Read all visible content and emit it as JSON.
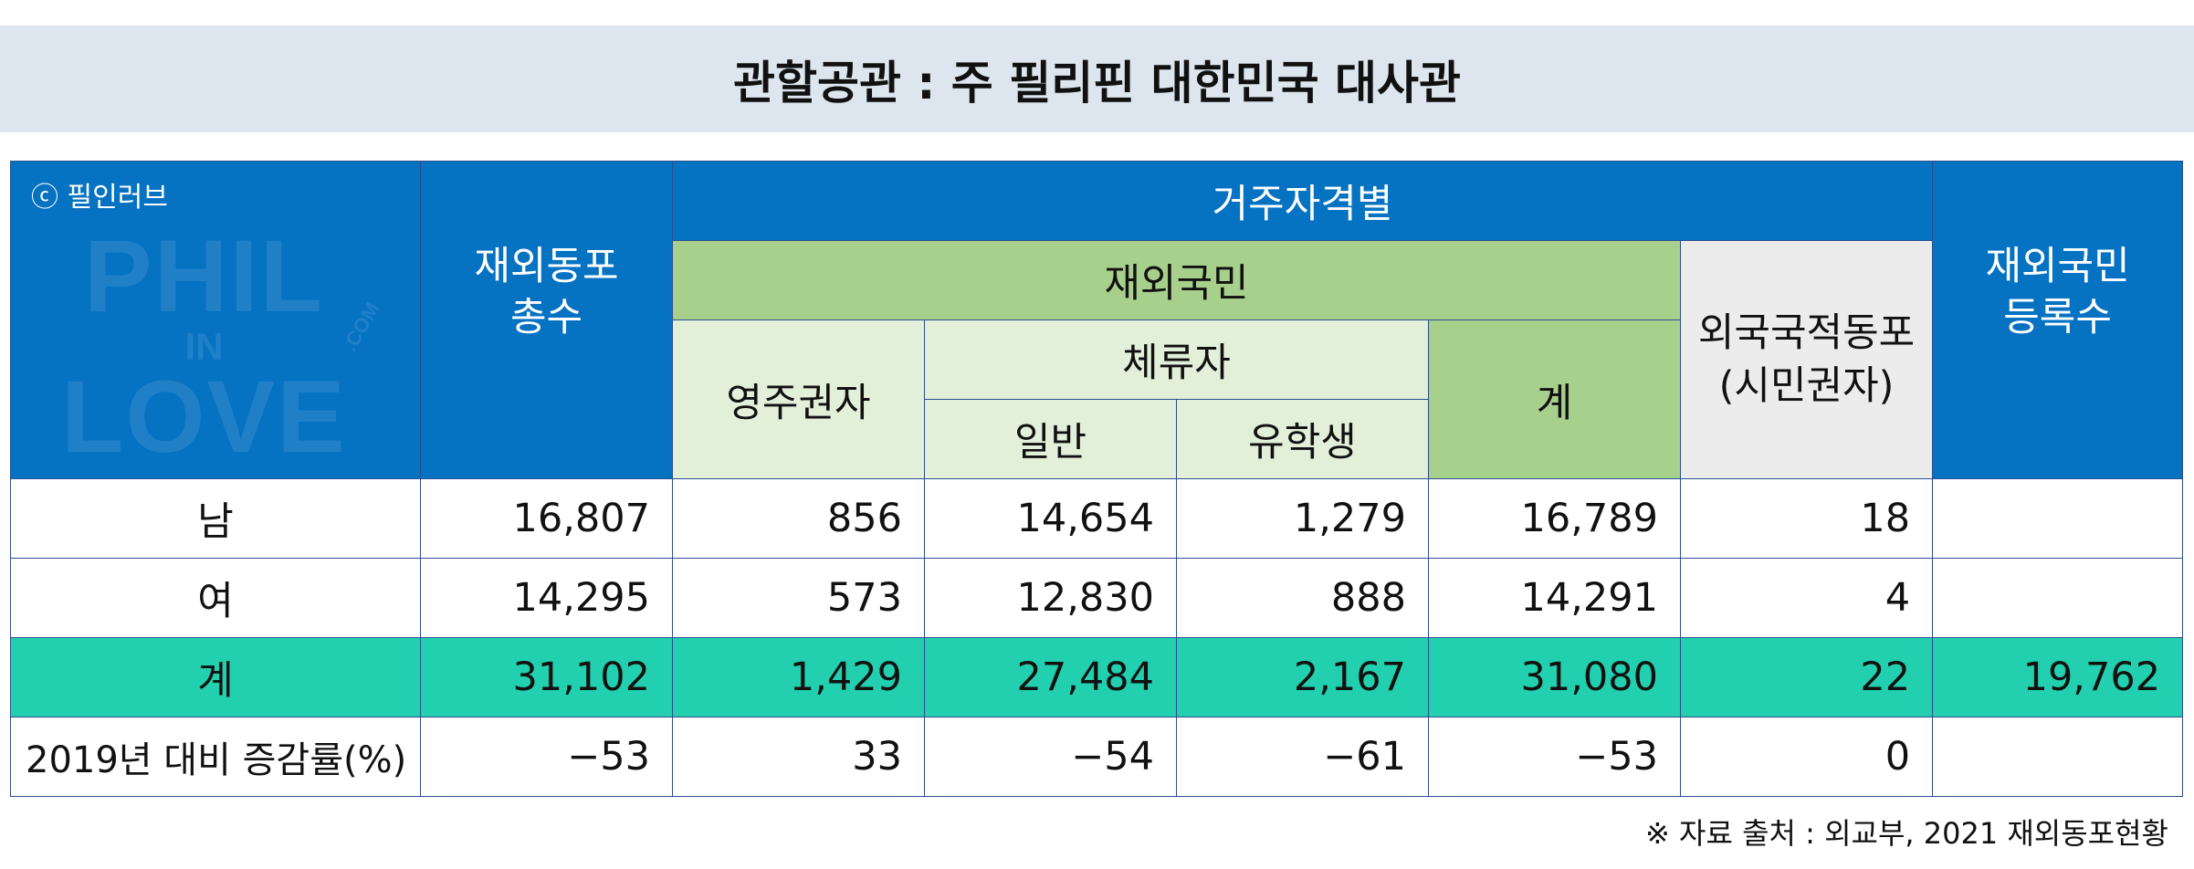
{
  "title": "관할공관 : 주 필리핀 대한민국 대사관",
  "copyright": "ⓒ 필인러브",
  "watermark": {
    "line1": "PHIL",
    "line2": "IN",
    "line3": "LOVE",
    "com": ".COM"
  },
  "colors": {
    "header_blue": "#0672c2",
    "green": "#a8d08d",
    "light_green": "#e2efd9",
    "gray": "#ececec",
    "teal_row": "#22cfae",
    "title_bg": "#dde6ee"
  },
  "header": {
    "total": "재외동포\n총수",
    "by_residence": "거주자격별",
    "nationals": "재외국민",
    "permanent": "영주권자",
    "sojourners": "체류자",
    "general": "일반",
    "students": "유학생",
    "subtotal": "계",
    "foreign_nationals": "외국국적동포\n(시민권자)",
    "registered": "재외국민\n등록수"
  },
  "rows": [
    {
      "label": "남",
      "total": "16,807",
      "permanent": "856",
      "general": "14,654",
      "students": "1,279",
      "subtotal": "16,789",
      "foreign": "18",
      "registered": ""
    },
    {
      "label": "여",
      "total": "14,295",
      "permanent": "573",
      "general": "12,830",
      "students": "888",
      "subtotal": "14,291",
      "foreign": "4",
      "registered": ""
    },
    {
      "label": "계",
      "total": "31,102",
      "permanent": "1,429",
      "general": "27,484",
      "students": "2,167",
      "subtotal": "31,080",
      "foreign": "22",
      "registered": "19,762"
    },
    {
      "label": "2019년 대비 증감률(%)",
      "total": "−53",
      "permanent": "33",
      "general": "−54",
      "students": "−61",
      "subtotal": "−53",
      "foreign": "0",
      "registered": ""
    }
  ],
  "source": "※ 자료 출처 :  외교부, 2021 재외동포현황"
}
